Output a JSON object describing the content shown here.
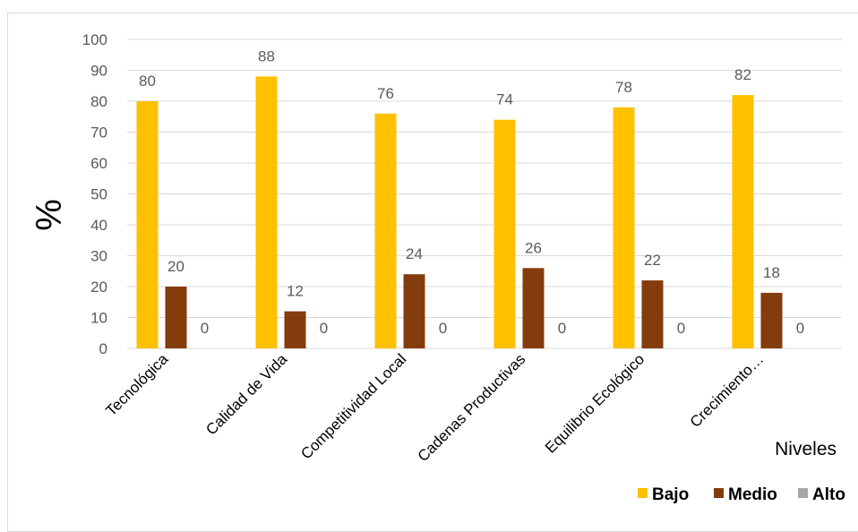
{
  "chart_data": {
    "type": "bar",
    "ylabel": "%",
    "xlabel": "Niveles",
    "ylim": [
      0,
      100
    ],
    "yticks": [
      0,
      10,
      20,
      30,
      40,
      50,
      60,
      70,
      80,
      90,
      100
    ],
    "grid": true,
    "legend_position": "bottom-right",
    "categories": [
      "Tecnológica",
      "Calidad de Vida",
      "Competitividad Local",
      "Cadenas Productivas",
      "Equilibrio Ecológico",
      "Crecimiento…"
    ],
    "series": [
      {
        "name": "Bajo",
        "color": "#ffc000",
        "values": [
          80,
          88,
          76,
          74,
          78,
          82
        ]
      },
      {
        "name": "Medio",
        "color": "#843c0c",
        "values": [
          20,
          12,
          24,
          26,
          22,
          18
        ]
      },
      {
        "name": "Alto",
        "color": "#a5a5a5",
        "values": [
          0,
          0,
          0,
          0,
          0,
          0
        ]
      }
    ]
  }
}
